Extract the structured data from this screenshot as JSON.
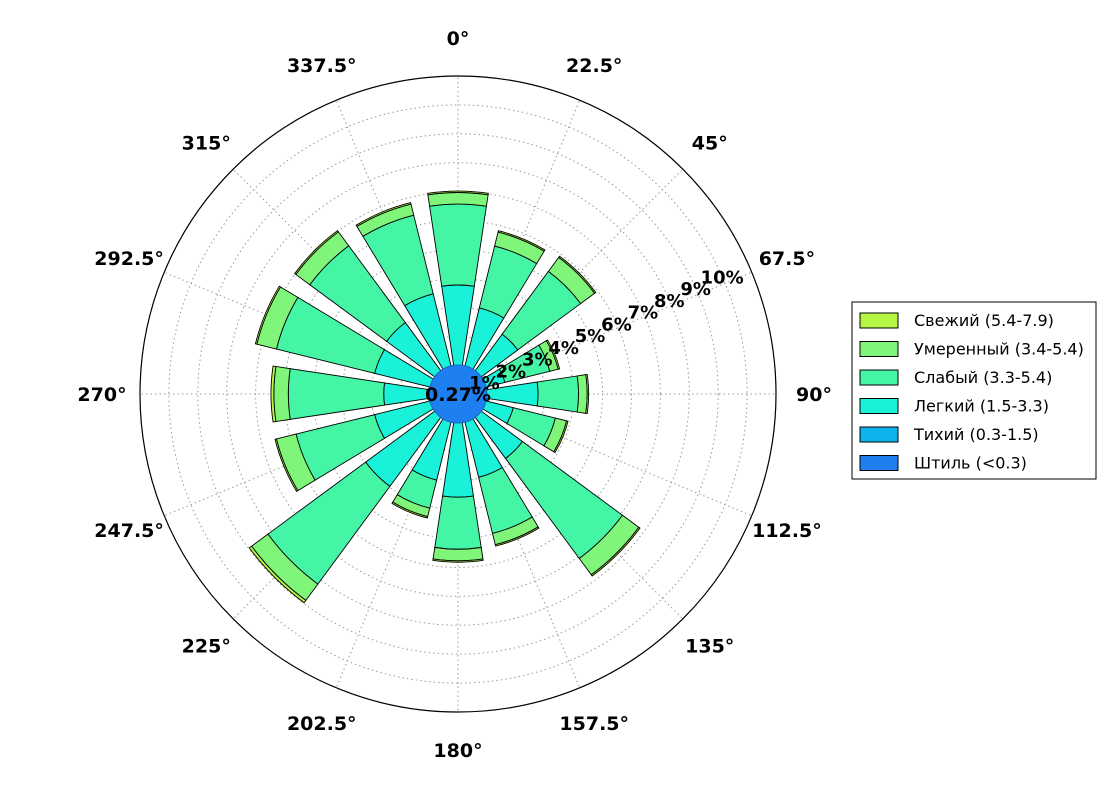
{
  "chart_data": {
    "type": "windrose",
    "title": "",
    "direction_labels": [
      "0°",
      "22.5°",
      "45°",
      "67.5°",
      "90°",
      "112.5°",
      "135°",
      "157.5°",
      "180°",
      "202.5°",
      "225°",
      "247.5°",
      "270°",
      "292.5°",
      "315°",
      "337.5°"
    ],
    "directions": [
      0,
      22.5,
      45,
      67.5,
      90,
      112.5,
      135,
      157.5,
      180,
      202.5,
      225,
      247.5,
      270,
      292.5,
      315,
      337.5
    ],
    "radial_ticks": [
      "1%",
      "2%",
      "3%",
      "4%",
      "5%",
      "6%",
      "7%",
      "8%",
      "9%",
      "10%"
    ],
    "rmax": 11,
    "calm_label": "0.27%",
    "legend_placement": "right",
    "series": [
      {
        "name": "Штиль (<0.3)",
        "color": "#1e7ff0",
        "values": [
          0.27,
          0.27,
          0.27,
          0.27,
          0.27,
          0.27,
          0.27,
          0.27,
          0.27,
          0.27,
          0.27,
          0.27,
          0.27,
          0.27,
          0.27,
          0.27
        ]
      },
      {
        "name": "Тихий (0.3-1.5)",
        "color": "#0db3ef",
        "values": [
          0.2,
          0.2,
          0.2,
          0.2,
          0.2,
          0.2,
          0.2,
          0.2,
          0.2,
          0.2,
          0.2,
          0.2,
          0.2,
          0.2,
          0.2,
          0.2
        ]
      },
      {
        "name": "Легкий (1.5-3.3)",
        "color": "#19f2d8",
        "values": [
          3.3,
          2.6,
          2.1,
          1.2,
          2.3,
          1.5,
          2.3,
          2.5,
          3.1,
          2.6,
          3.5,
          2.5,
          2.1,
          2.5,
          2.6,
          3.1
        ]
      },
      {
        "name": "Слабый (3.3-5.4)",
        "color": "#45f5a6",
        "values": [
          2.8,
          2.2,
          2.7,
          1.6,
          1.4,
          1.5,
          4.3,
          2.0,
          1.8,
          1.0,
          4.2,
          2.8,
          3.3,
          3.5,
          3.3,
          2.8
        ]
      },
      {
        "name": "Умеренный (3.4-5.4)",
        "color": "#7ff57a",
        "values": [
          0.4,
          0.5,
          0.6,
          0.3,
          0.3,
          0.4,
          0.7,
          0.4,
          0.4,
          0.3,
          0.7,
          0.7,
          0.5,
          0.7,
          0.6,
          0.4
        ]
      },
      {
        "name": "Свежий (5.4-7.9)",
        "color": "#b5f543",
        "values": [
          0.05,
          0.05,
          0.05,
          0.05,
          0.05,
          0.05,
          0.05,
          0.05,
          0.05,
          0.05,
          0.1,
          0.05,
          0.1,
          0.05,
          0.05,
          0.05
        ]
      }
    ],
    "legend_order": [
      "Свежий (5.4-7.9)",
      "Умеренный (3.4-5.4)",
      "Слабый (3.3-5.4)",
      "Легкий (1.5-3.3)",
      "Тихий (0.3-1.5)",
      "Штиль (<0.3)"
    ]
  }
}
